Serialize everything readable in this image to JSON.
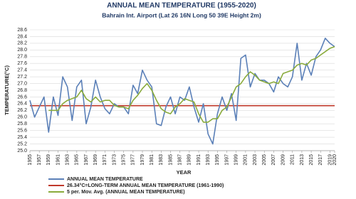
{
  "chart_data": {
    "type": "line",
    "title": "ANNUAL MEAN TEMPERATURE (1955-2020)",
    "subtitle": "Bahrain Int. Airport (Lat 26 16N Long 50 39E  Height 2m)",
    "x_label": "YEAR",
    "y_label": "TEMPERATURE(°C)",
    "x": [
      1955,
      1956,
      1957,
      1958,
      1959,
      1960,
      1961,
      1962,
      1963,
      1964,
      1965,
      1966,
      1967,
      1968,
      1969,
      1970,
      1971,
      1972,
      1973,
      1974,
      1975,
      1976,
      1977,
      1978,
      1979,
      1980,
      1981,
      1982,
      1983,
      1984,
      1985,
      1986,
      1987,
      1988,
      1989,
      1990,
      1991,
      1992,
      1993,
      1994,
      1995,
      1996,
      1997,
      1998,
      1999,
      2000,
      2001,
      2002,
      2003,
      2004,
      2005,
      2006,
      2007,
      2008,
      2009,
      2010,
      2011,
      2012,
      2013,
      2014,
      2015,
      2016,
      2017,
      2018,
      2019,
      2020
    ],
    "xlim": [
      1955,
      2020
    ],
    "xticks": [
      1955,
      1957,
      1959,
      1961,
      1963,
      1965,
      1967,
      1969,
      1971,
      1973,
      1975,
      1977,
      1979,
      1981,
      1983,
      1985,
      1987,
      1989,
      1991,
      1993,
      1995,
      1997,
      1999,
      2001,
      2003,
      2005,
      2007,
      2009,
      2011,
      2013,
      2015,
      2017,
      2019,
      2020
    ],
    "ylim": [
      25,
      28.6
    ],
    "yticks": [
      {
        "value": 25,
        "label": "25.0"
      },
      25.2,
      25.4,
      25.6,
      25.8,
      {
        "value": 26,
        "label": "26.0"
      },
      26.2,
      26.4,
      26.6,
      26.8,
      {
        "value": 27,
        "label": "27.0"
      },
      27.2,
      27.4,
      27.6,
      27.8,
      {
        "value": 28,
        "label": "28.0"
      },
      28.2,
      28.4,
      28.6
    ],
    "grid": true,
    "series": [
      {
        "name": "ANNUAL MEAN TEMPERATURE",
        "color": "#5b80b8",
        "values": [
          26.5,
          26.0,
          26.3,
          26.6,
          25.55,
          26.6,
          26.05,
          27.2,
          26.9,
          25.9,
          26.9,
          27.1,
          25.8,
          26.3,
          27.1,
          26.6,
          26.25,
          26.1,
          26.4,
          26.3,
          26.3,
          26.1,
          26.95,
          26.7,
          27.4,
          27.1,
          26.9,
          25.8,
          25.75,
          26.3,
          26.6,
          26.1,
          26.6,
          26.5,
          26.9,
          26.3,
          25.85,
          26.4,
          25.5,
          25.2,
          26.1,
          26.6,
          26.2,
          26.7,
          25.9,
          27.75,
          27.85,
          26.9,
          27.3,
          27.1,
          27.1,
          27.0,
          26.75,
          27.2,
          27.0,
          26.9,
          27.2,
          28.2,
          27.1,
          27.6,
          27.25,
          27.8,
          28.0,
          28.35,
          28.2,
          28.1
        ]
      },
      {
        "name": "26.34°C=LONG-TERM ANNUAL MEAN TEMPERATURE (1961-1990)",
        "color": "#c0392b",
        "value": 26.34
      },
      {
        "name": "5 per. Mov. Avg. (ANNUAL MEAN TEMPERATURE)",
        "color": "#8aab3c",
        "values": [
          null,
          null,
          null,
          null,
          26.2,
          26.2,
          26.2,
          26.4,
          26.5,
          26.55,
          26.6,
          26.8,
          26.55,
          26.45,
          26.6,
          26.45,
          26.5,
          26.5,
          26.35,
          26.3,
          26.3,
          26.25,
          26.5,
          26.65,
          26.85,
          27.0,
          26.8,
          26.5,
          26.25,
          26.15,
          26.1,
          26.3,
          26.4,
          26.55,
          26.5,
          26.45,
          26.1,
          25.85,
          25.85,
          25.95,
          25.95,
          26.2,
          26.3,
          26.6,
          26.9,
          27.0,
          27.2,
          27.35,
          27.25,
          27.1,
          27.05,
          27.0,
          27.05,
          27.0,
          27.3,
          27.35,
          27.4,
          27.55,
          27.6,
          27.55,
          27.7,
          27.75,
          27.85,
          27.95,
          28.05,
          28.1
        ]
      }
    ]
  }
}
